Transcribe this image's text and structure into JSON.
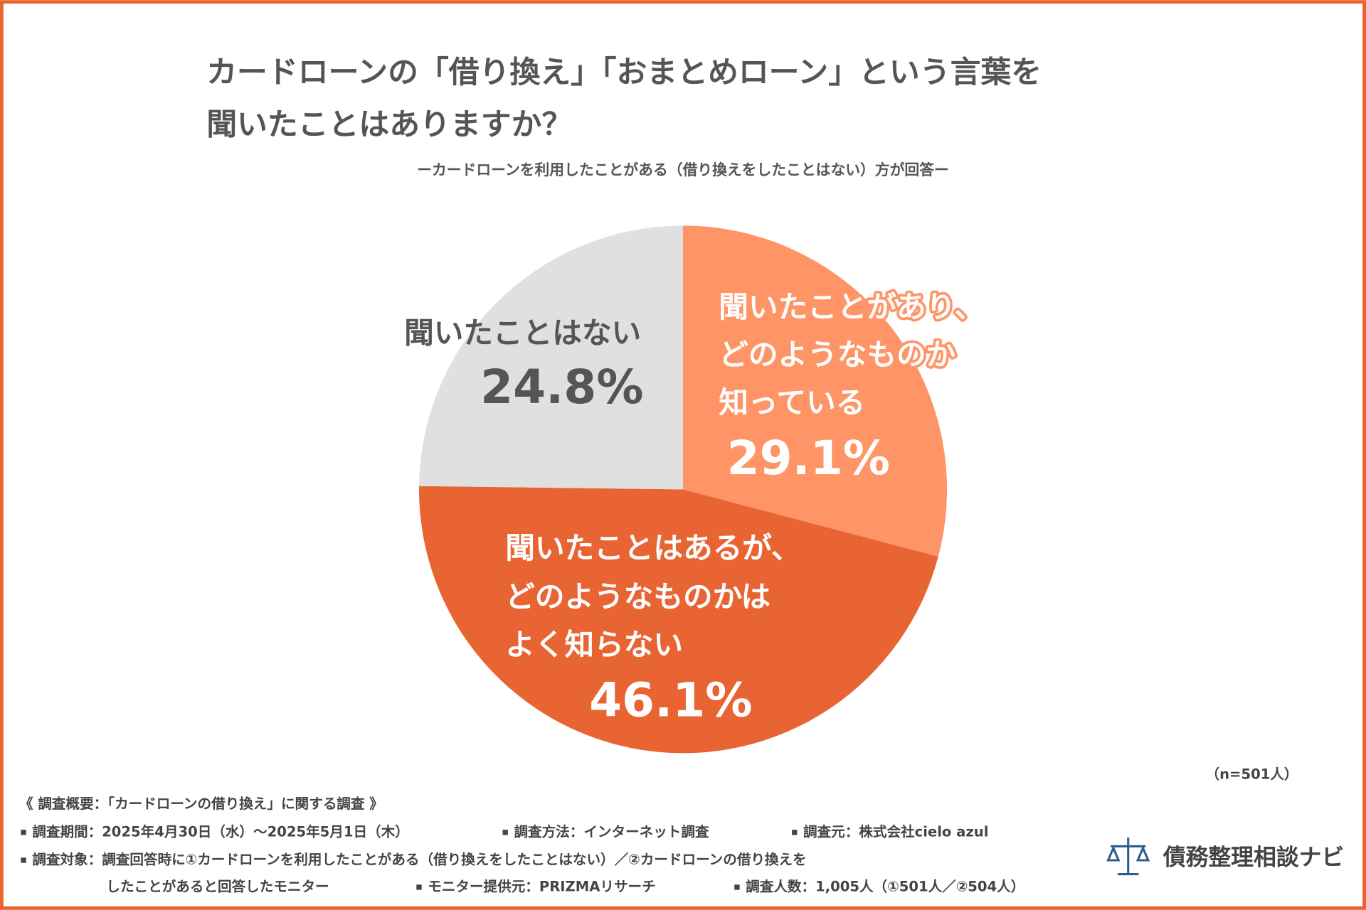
{
  "chart_data": {
    "type": "pie",
    "title": [
      "カードローンの「借り換え」「おまとめローン」という言葉を",
      "聞いたことはありますか？"
    ],
    "subtitle": "ーカードローンを利用したことがある（借り換えをしたことはない）方が回答ー",
    "categories": [
      [
        "聞いたことがあり、",
        "どのようなものか",
        "知っている"
      ],
      [
        "聞いたことはあるが、",
        "どのようなものかは",
        "よく知らない"
      ],
      [
        "聞いたことはない"
      ]
    ],
    "values": [
      29.1,
      46.1,
      24.8
    ],
    "value_labels": [
      "29.1%",
      "46.1%",
      "24.8%"
    ],
    "colors": [
      "#ff9466",
      "#e86432",
      "#e0e0e0"
    ],
    "sample_note": "（n=501人）"
  },
  "footer": {
    "heading": "《 調査概要：「カードローンの借り換え」に関する調査 》",
    "rows": [
      [
        "調査期間：2025年4月30日（水）～2025年5月1日（木）",
        "調査方法：インターネット調査",
        "調査元：株式会社cielo azul"
      ],
      [
        "調査対象：調査回答時に①カードローンを利用したことがある（借り換えをしたことはない）／②カードローンの借り換えを"
      ],
      [
        "したことがあると回答したモニター",
        "モニター提供元：PRIZMAリサーチ",
        "調査人数：1,005人（①501人／②504人）"
      ]
    ]
  },
  "logo": "債務整理相談ナビ"
}
